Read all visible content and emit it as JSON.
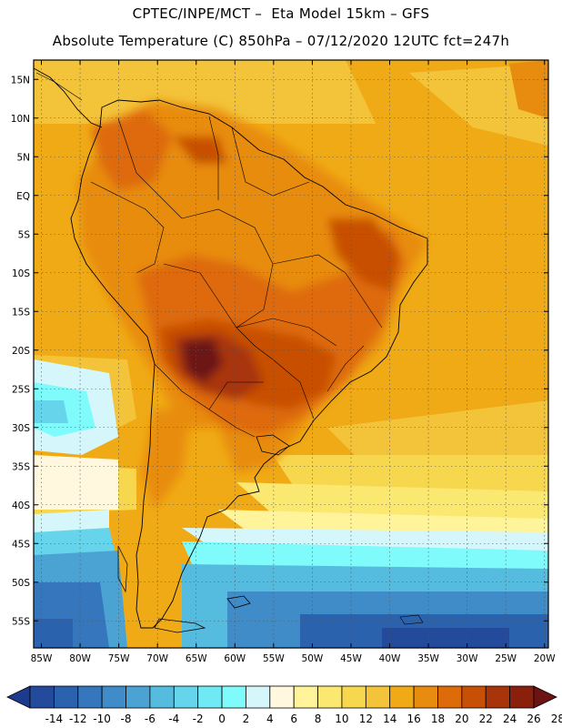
{
  "header": {
    "line1": "CPTEC/INPE/MCT –  Eta Model 15km – GFS",
    "line2": "Absolute Temperature (C) 850hPa – 07/12/2020 12UTC fct=247h"
  },
  "map": {
    "lat_labels": [
      "15N",
      "10N",
      "5N",
      "EQ",
      "5S",
      "10S",
      "15S",
      "20S",
      "25S",
      "30S",
      "35S",
      "40S",
      "45S",
      "50S",
      "55S"
    ],
    "lon_labels": [
      "85W",
      "80W",
      "75W",
      "70W",
      "65W",
      "60W",
      "55W",
      "50W",
      "45W",
      "40W",
      "35W",
      "30W",
      "25W",
      "20W"
    ],
    "region": "South America",
    "variable": "Absolute Temperature (C) 850hPa"
  },
  "colorbar": {
    "labels": [
      "-14",
      "-12",
      "-10",
      "-8",
      "-6",
      "-4",
      "-2",
      "0",
      "2",
      "4",
      "6",
      "8",
      "10",
      "12",
      "14",
      "16",
      "18",
      "20",
      "22",
      "24",
      "26",
      "28"
    ],
    "colors": [
      "#1e3a8c",
      "#244a9c",
      "#2b62ae",
      "#3576bd",
      "#3f8cc8",
      "#4aa3d3",
      "#56bcdf",
      "#66d4ea",
      "#6fe9f4",
      "#7ffbfb",
      "#d5f6fb",
      "#fff8de",
      "#fff49a",
      "#fbe870",
      "#f7d74e",
      "#f3c33a",
      "#f0aa16",
      "#e88c10",
      "#de6b0a",
      "#c84f06",
      "#a8340c",
      "#8a1f0c",
      "#6c1414"
    ]
  }
}
